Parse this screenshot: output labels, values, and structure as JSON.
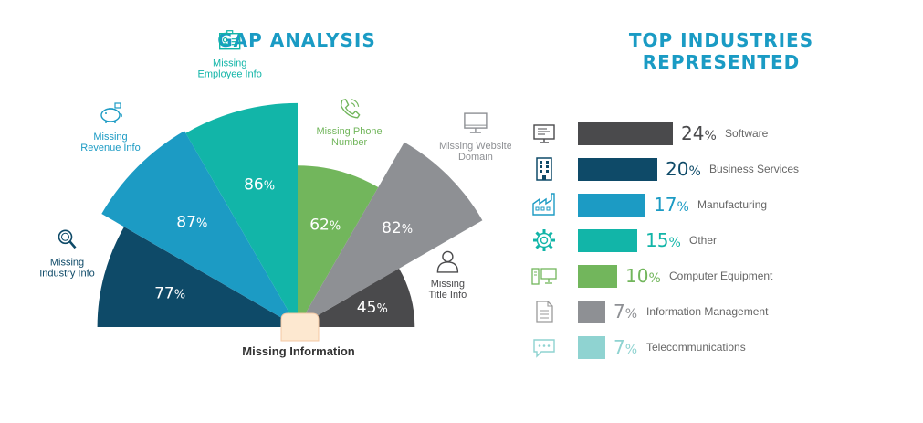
{
  "gap_title": "GAP ANALYSIS",
  "industries_title_line1": "TOP INDUSTRIES",
  "industries_title_line2": "REPRESENTED",
  "percent_sign": "%",
  "chart_data": [
    {
      "type": "pie",
      "variant": "semicircle-radial",
      "title": "GAP ANALYSIS",
      "caption": "Missing Information",
      "categories": [
        [
          "Missing",
          "Industry Info"
        ],
        [
          "Missing",
          "Revenue Info"
        ],
        [
          "Missing",
          "Employee Info"
        ],
        [
          "Missing Phone",
          "Number"
        ],
        [
          "Missing Website",
          "Domain"
        ],
        [
          "Missing",
          "Title Info"
        ]
      ],
      "values": [
        77,
        87,
        86,
        62,
        82,
        45
      ],
      "colors": [
        "#0e4a68",
        "#1c9bc4",
        "#12b5a8",
        "#72b65c",
        "#8e9094",
        "#4a4a4c"
      ],
      "label_colors": [
        "#0e4a68",
        "#1c9bc4",
        "#12b5a8",
        "#72b65c",
        "#8e9094",
        "#4a4a4c"
      ],
      "icons": [
        "magnifier-icon",
        "piggy-bank-icon",
        "id-card-icon",
        "phone-icon",
        "monitor-icon",
        "person-icon"
      ],
      "rlim": [
        0,
        100
      ]
    },
    {
      "type": "bar",
      "orientation": "horizontal",
      "title": "TOP INDUSTRIES REPRESENTED",
      "categories": [
        "Software",
        "Business Services",
        "Manufacturing",
        "Other",
        "Computer Equipment",
        "Information Management",
        "Telecommunications"
      ],
      "values": [
        24,
        20,
        17,
        15,
        10,
        7,
        7
      ],
      "colors": [
        "#4a4a4c",
        "#0e4a68",
        "#1c9bc4",
        "#12b5a8",
        "#72b65c",
        "#8e9094",
        "#8fd3d1"
      ],
      "icons": [
        "computer-screen-icon",
        "office-building-icon",
        "factory-icon",
        "gear-icon",
        "computer-equipment-icon",
        "document-icon",
        "chat-icon"
      ],
      "xlim": [
        0,
        24
      ]
    }
  ]
}
